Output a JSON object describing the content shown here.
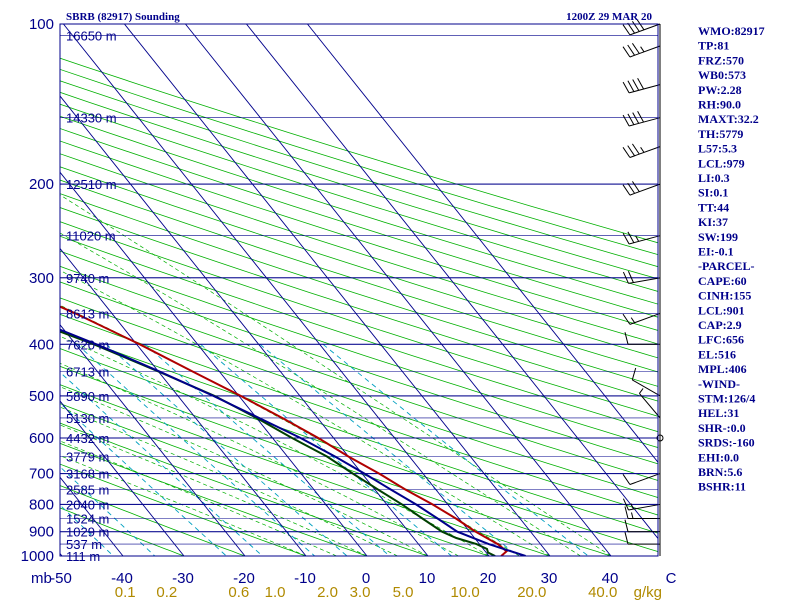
{
  "chart_data": {
    "type": "line",
    "title": "SBRB (82917) Sounding",
    "timestamp": "1200Z 29 MAR 20",
    "x_unit_label": "mb",
    "mixing_unit_label": "g/kg",
    "pressure_levels": [
      100,
      200,
      300,
      400,
      500,
      600,
      700,
      800,
      900,
      1000
    ],
    "temperature_ticks": [
      "-50",
      "-40",
      "-30",
      "-20",
      "-10",
      "0",
      "10",
      "20",
      "30",
      "40",
      "C"
    ],
    "mixing_ratio_labels": [
      {
        "w": 0.1,
        "text": "0.1"
      },
      {
        "w": 0.2,
        "text": "0.2"
      },
      {
        "w": 0.6,
        "text": "0.6"
      },
      {
        "w": 1.0,
        "text": "1.0"
      },
      {
        "w": 2.0,
        "text": "2.0"
      },
      {
        "w": 3.0,
        "text": "3.0"
      },
      {
        "w": 5.0,
        "text": "5.0"
      },
      {
        "w": 10.0,
        "text": "10.0"
      },
      {
        "w": 20.0,
        "text": "20.0"
      },
      {
        "w": 40.0,
        "text": "40.0"
      }
    ],
    "heights": [
      {
        "p": 105,
        "text": "16650 m"
      },
      {
        "p": 150,
        "text": "14330 m"
      },
      {
        "p": 200,
        "text": "12510 m"
      },
      {
        "p": 250,
        "text": "11020 m"
      },
      {
        "p": 300,
        "text": "9740 m"
      },
      {
        "p": 350,
        "text": "8613 m"
      },
      {
        "p": 400,
        "text": "7620 m"
      },
      {
        "p": 450,
        "text": "6713 m"
      },
      {
        "p": 500,
        "text": "5890 m"
      },
      {
        "p": 550,
        "text": "5130 m"
      },
      {
        "p": 600,
        "text": "4432 m"
      },
      {
        "p": 650,
        "text": "3779 m"
      },
      {
        "p": 700,
        "text": "3168 m"
      },
      {
        "p": 750,
        "text": "2585 m"
      },
      {
        "p": 800,
        "text": "2040 m"
      },
      {
        "p": 850,
        "text": "1524 m"
      },
      {
        "p": 900,
        "text": "1029 m"
      },
      {
        "p": 950,
        "text": "537 m"
      },
      {
        "p": 1000,
        "text": "111 m"
      }
    ],
    "series": [
      {
        "key": "temperature",
        "color": "#b00000",
        "points": [
          [
            1000,
            22
          ],
          [
            980,
            23.5
          ],
          [
            950,
            23
          ],
          [
            925,
            22
          ],
          [
            900,
            21
          ],
          [
            850,
            19.5
          ],
          [
            800,
            17.5
          ],
          [
            750,
            15
          ],
          [
            700,
            12.8
          ],
          [
            650,
            10
          ],
          [
            600,
            7.5
          ],
          [
            550,
            4.2
          ],
          [
            500,
            0.3
          ],
          [
            450,
            -4.4
          ],
          [
            400,
            -9.5
          ],
          [
            350,
            -16
          ],
          [
            300,
            -24.6
          ],
          [
            250,
            -35.4
          ],
          [
            200,
            -48
          ],
          [
            150,
            -60.5
          ],
          [
            120,
            -69
          ],
          [
            105,
            -73.5
          ],
          [
            100,
            -74
          ]
        ]
      },
      {
        "key": "dewpoint",
        "color": "#004000",
        "points": [
          [
            1000,
            21
          ],
          [
            985,
            20.3
          ],
          [
            970,
            20.6
          ],
          [
            950,
            19.5
          ],
          [
            925,
            17
          ],
          [
            900,
            15.5
          ],
          [
            850,
            14
          ],
          [
            800,
            12.5
          ],
          [
            750,
            10.5
          ],
          [
            700,
            8.5
          ],
          [
            650,
            6.5
          ],
          [
            600,
            3.2
          ],
          [
            550,
            0
          ],
          [
            500,
            -4
          ],
          [
            450,
            -10
          ],
          [
            400,
            -17
          ],
          [
            350,
            -26.5
          ],
          [
            300,
            -38
          ],
          [
            270,
            -42
          ],
          [
            250,
            -47
          ],
          [
            230,
            -56
          ],
          [
            200,
            -61
          ],
          [
            180,
            -68
          ],
          [
            165,
            -76
          ],
          [
            150,
            -73
          ],
          [
            140,
            -78
          ],
          [
            120,
            -81
          ],
          [
            110,
            -83
          ],
          [
            100,
            -85
          ]
        ]
      },
      {
        "key": "parcel",
        "color": "#00008b",
        "points": [
          [
            1000,
            26
          ],
          [
            950,
            21.5
          ],
          [
            900,
            18
          ],
          [
            850,
            16.5
          ],
          [
            800,
            14.8
          ],
          [
            750,
            12.6
          ],
          [
            700,
            10.4
          ],
          [
            650,
            7.8
          ],
          [
            600,
            4.6
          ],
          [
            550,
            0.4
          ],
          [
            500,
            -4.2
          ],
          [
            450,
            -9.8
          ],
          [
            400,
            -16.6
          ],
          [
            350,
            -25.2
          ],
          [
            300,
            -34.6
          ],
          [
            250,
            -46
          ],
          [
            200,
            -58
          ],
          [
            160,
            -70.5
          ],
          [
            140,
            -78
          ],
          [
            120,
            -86
          ],
          [
            110,
            -90
          ]
        ]
      }
    ],
    "wind_barbs": [
      {
        "p": 100,
        "dir": 250,
        "spd": 40
      },
      {
        "p": 110,
        "dir": 250,
        "spd": 35
      },
      {
        "p": 130,
        "dir": 255,
        "spd": 40
      },
      {
        "p": 150,
        "dir": 255,
        "spd": 40
      },
      {
        "p": 170,
        "dir": 250,
        "spd": 35
      },
      {
        "p": 200,
        "dir": 250,
        "spd": 30
      },
      {
        "p": 250,
        "dir": 255,
        "spd": 25
      },
      {
        "p": 300,
        "dir": 260,
        "spd": 20
      },
      {
        "p": 350,
        "dir": 250,
        "spd": 15
      },
      {
        "p": 400,
        "dir": 270,
        "spd": 10
      },
      {
        "p": 500,
        "dir": 300,
        "spd": 10
      },
      {
        "p": 550,
        "dir": 320,
        "spd": 5
      },
      {
        "p": 600,
        "dir": 0,
        "spd": 0
      },
      {
        "p": 700,
        "dir": 250,
        "spd": 10
      },
      {
        "p": 800,
        "dir": 260,
        "spd": 15
      },
      {
        "p": 850,
        "dir": 270,
        "spd": 15
      },
      {
        "p": 900,
        "dir": 270,
        "spd": 10
      },
      {
        "p": 950,
        "dir": 270,
        "spd": 10
      }
    ],
    "indices": [
      "WMO:82917",
      "TP:81",
      "FRZ:570",
      "WB0:573",
      "PW:2.28",
      "RH:90.0",
      "MAXT:32.2",
      "TH:5779",
      "L57:5.3",
      "LCL:979",
      "LI:0.3",
      "SI:0.1",
      "TT:44",
      "KI:37",
      "SW:199",
      "EI:-0.1",
      "-PARCEL-",
      "CAPE:60",
      "CINH:155",
      "LCL:901",
      "CAP:2.9",
      "LFC:656",
      "EL:516",
      "MPL:406",
      "-WIND-",
      "STM:126/4",
      "HEL:31",
      "SHR-:0.0",
      "SRDS:-160",
      "EHI:0.0",
      "BRN:5.6",
      "BSHR:11"
    ],
    "colors": {
      "frame": "#00008b",
      "isobar": "#00008b",
      "isotherm": "#00008b",
      "dry_adiabat": "#00b000",
      "moist_adiabat": "#00b000",
      "mixing_ratio": "#00a0c0",
      "mixing_label": "#b08a00",
      "wind": "#000000"
    }
  }
}
